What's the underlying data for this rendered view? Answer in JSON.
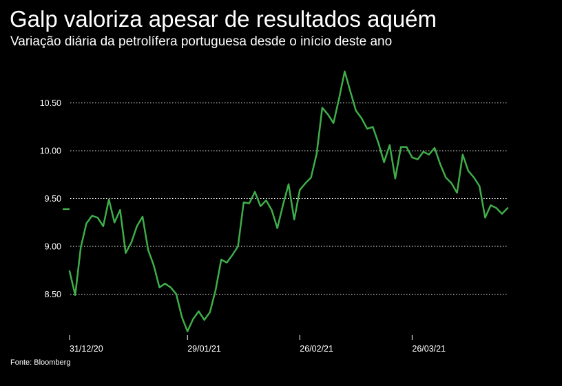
{
  "header": {
    "title": "Galp valoriza apesar de resultados aquém",
    "subtitle": "Variação diária da petrolífera portuguesa desde o início deste ano"
  },
  "footer": {
    "source": "Fonte: Bloomberg"
  },
  "colors": {
    "background": "#000000",
    "line": "#3fae49",
    "grid": "#ffffff",
    "text": "#ffffff"
  },
  "chart_data": {
    "type": "line",
    "title": "Galp valoriza apesar de resultados aquém",
    "subtitle": "Variação diária da petrolífera portuguesa desde o início deste ano",
    "xlabel": "",
    "ylabel": "",
    "ylim": [
      8.1,
      10.8
    ],
    "yticks": [
      8.5,
      9.0,
      9.5,
      10.0,
      10.5
    ],
    "ytick_labels": [
      "8.50",
      "9.00",
      "9.50",
      "10.00",
      "10.50"
    ],
    "xtick_labels": [
      "31/12/20",
      "29/01/21",
      "26/02/21",
      "26/03/21"
    ],
    "xtick_index": [
      0,
      21,
      41,
      61
    ],
    "grid": "horizontal dotted",
    "start_marker": 9.39,
    "series": [
      {
        "values": [
          8.74,
          8.49,
          8.99,
          9.24,
          9.32,
          9.3,
          9.21,
          9.49,
          9.25,
          9.38,
          8.93,
          9.04,
          9.21,
          9.31,
          8.96,
          8.8,
          8.57,
          8.61,
          8.57,
          8.5,
          8.26,
          8.11,
          8.24,
          8.32,
          8.23,
          8.31,
          8.54,
          8.86,
          8.83,
          8.91,
          9.0,
          9.46,
          9.45,
          9.57,
          9.42,
          9.48,
          9.38,
          9.19,
          9.43,
          9.65,
          9.28,
          9.59,
          9.66,
          9.72,
          9.97,
          10.45,
          10.38,
          10.29,
          10.55,
          10.83,
          10.62,
          10.42,
          10.34,
          10.23,
          10.25,
          10.08,
          9.88,
          10.06,
          9.71,
          10.04,
          10.04,
          9.93,
          9.91,
          9.99,
          9.96,
          10.03,
          9.86,
          9.72,
          9.66,
          9.56,
          9.96,
          9.79,
          9.72,
          9.63,
          9.3,
          9.43,
          9.4,
          9.34,
          9.4
        ]
      }
    ]
  }
}
